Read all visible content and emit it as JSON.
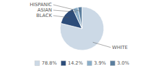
{
  "chart_data": {
    "type": "pie",
    "categories": [
      "WHITE",
      "BLACK",
      "ASIAN",
      "HISPANIC"
    ],
    "values": [
      78.8,
      14.2,
      3.9,
      3.0
    ],
    "value_labels": [
      "78.8%",
      "14.2%",
      "3.9%",
      "3.0%"
    ],
    "colors": [
      "#ccd9e6",
      "#2d4d7a",
      "#8aaec9",
      "#5b7e9e"
    ],
    "legend": "bottom"
  }
}
